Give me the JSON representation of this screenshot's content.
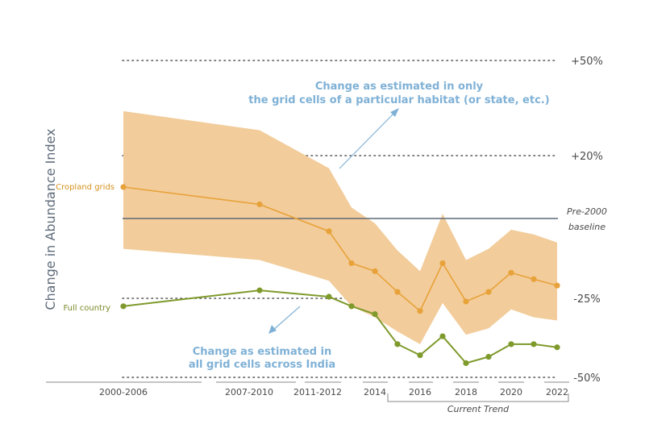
{
  "chart_data": {
    "type": "line",
    "ylabel": "Change in Abundance Index",
    "y_ticks": [
      "+50%",
      "+20%",
      "-25%",
      "-50%"
    ],
    "y_tick_values": [
      50,
      20,
      -25,
      -50
    ],
    "ylim": [
      -50,
      50
    ],
    "x_tick_labels": [
      "2000-2006",
      "2007-2010",
      "2011-2012",
      "2014",
      "2016",
      "2018",
      "2020",
      "2022"
    ],
    "x": [
      "2000-2006",
      "2007-2010",
      "2011-2012",
      "2013",
      "2014",
      "2015",
      "2016",
      "2017",
      "2018",
      "2019",
      "2020",
      "2021",
      "2022"
    ],
    "series": [
      {
        "name": "Cropland grids",
        "color": "#e8a23a",
        "values": [
          10,
          4.5,
          -4,
          -14,
          -16.5,
          -23,
          -29,
          -14,
          -26,
          -23,
          -17,
          -19,
          -21
        ],
        "band_upper": [
          34,
          28,
          16,
          3.5,
          -1.5,
          -10,
          -16.5,
          1.5,
          -13,
          -9.5,
          -3.5,
          -5,
          -7.5
        ],
        "band_lower": [
          -9.5,
          -13,
          -19.5,
          -27.5,
          -31,
          -35.5,
          -39.5,
          -26.5,
          -36.5,
          -34.5,
          -28.5,
          -31,
          -32
        ]
      },
      {
        "name": "Full country",
        "color": "#7f9a2c",
        "values": [
          -27.5,
          -22.5,
          -24.5,
          -27.5,
          -30,
          -39.5,
          -43,
          -37,
          -45.5,
          -43.5,
          -39.5,
          -39.5,
          -40.5
        ]
      }
    ],
    "baseline": {
      "label_line1": "Pre-2000",
      "label_line2": "baseline",
      "value": 0
    },
    "annotations": {
      "habitat_line1": "Change as estimated in only",
      "habitat_line2": "the grid cells of a particular habitat (or state, etc.)",
      "india_line1": "Change as estimated in",
      "india_line2": "all grid cells across India"
    },
    "current_trend_label": "Current Trend",
    "grid": "dotted at +50%, +20%, -25%, -50%",
    "colors": {
      "band": "#f2cc9a",
      "baseline": "#5f6b78",
      "annotation": "#7fb1d6",
      "grid": "#555555"
    }
  }
}
